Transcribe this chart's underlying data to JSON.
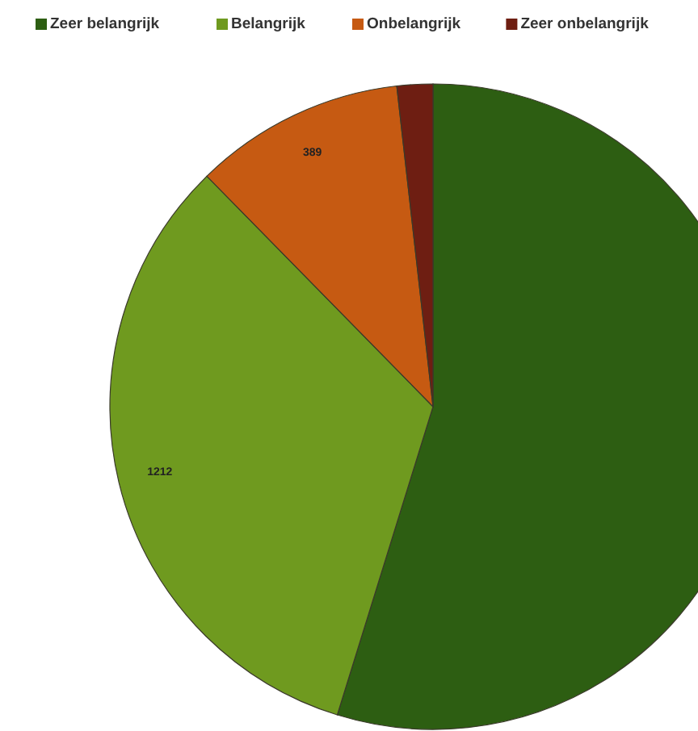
{
  "chart_data": {
    "type": "pie",
    "categories": [
      "Zeer belangrijk",
      "Belangrijk",
      "Onbelangrijk",
      "Zeer onbelangrijk"
    ],
    "values": [
      2020,
      1212,
      389,
      66
    ],
    "colors": [
      "#2d5e12",
      "#6f9a1f",
      "#c65a12",
      "#6e1e12"
    ],
    "value_labels": [
      null,
      "1212",
      "389",
      null
    ],
    "legend": "top"
  }
}
